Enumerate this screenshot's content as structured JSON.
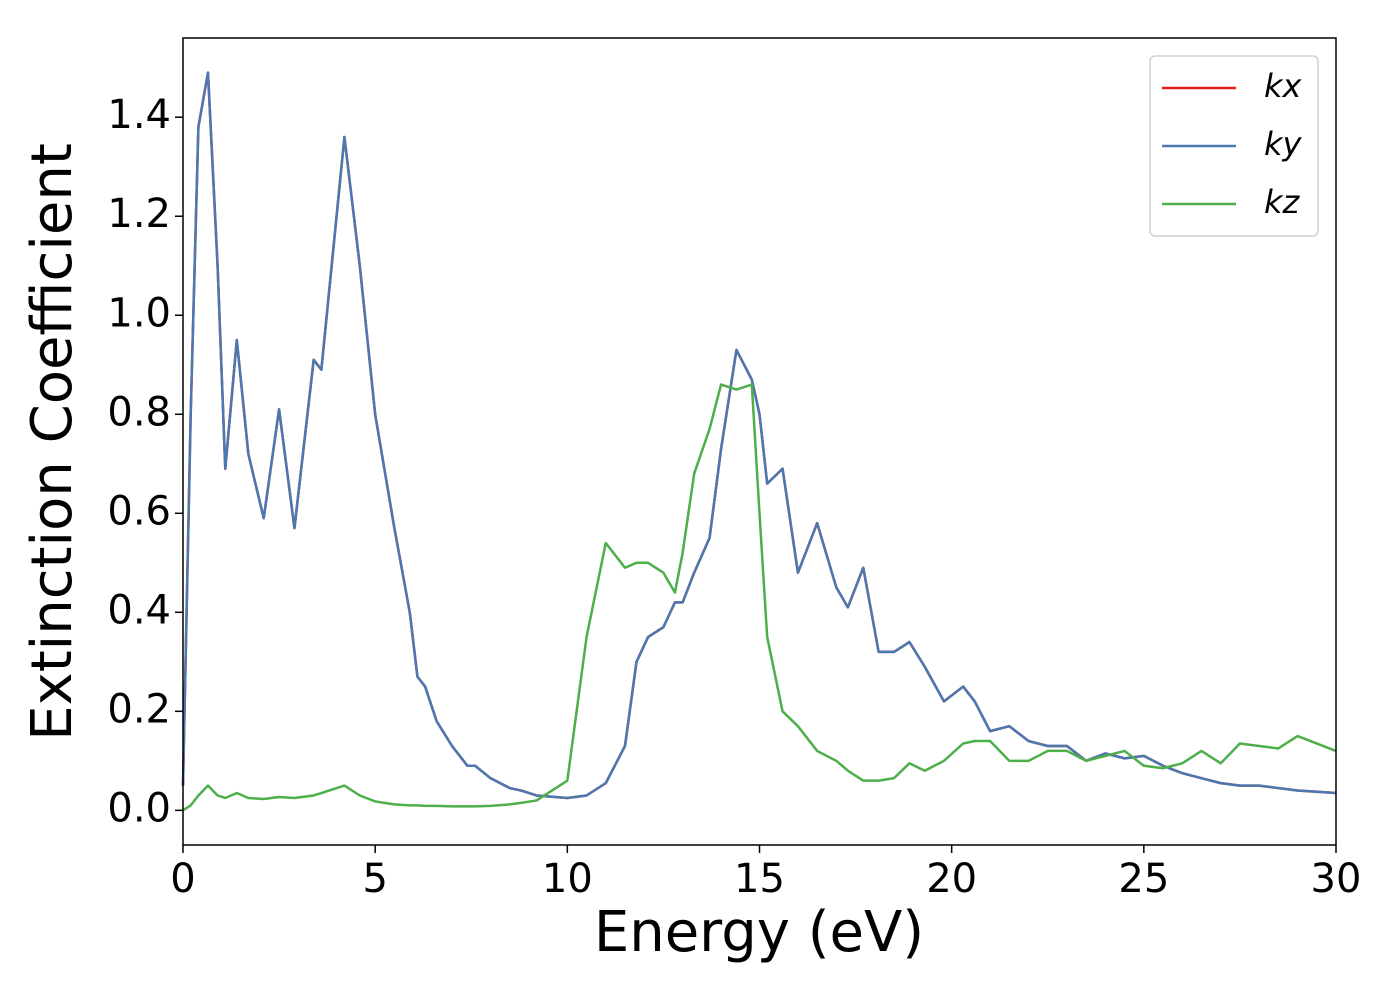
{
  "chart_data": {
    "type": "line",
    "xlabel": "Energy (eV)",
    "ylabel": "Extinction Coefficient",
    "x": [
      0,
      0.2,
      0.4,
      0.65,
      0.9,
      1.1,
      1.4,
      1.7,
      2.1,
      2.5,
      2.9,
      3.4,
      3.6,
      4.2,
      4.6,
      5.0,
      5.5,
      5.9,
      6.1,
      6.3,
      6.6,
      7.0,
      7.4,
      7.6,
      8.0,
      8.5,
      8.8,
      9.2,
      10,
      10.5,
      11,
      11.5,
      11.8,
      12.1,
      12.5,
      12.8,
      13.0,
      13.3,
      13.7,
      14.0,
      14.4,
      14.8,
      15.0,
      15.2,
      15.6,
      16.0,
      16.5,
      17.0,
      17.3,
      17.7,
      18.1,
      18.5,
      18.9,
      19.3,
      19.8,
      20.3,
      20.6,
      21.0,
      21.5,
      22.0,
      22.5,
      23.0,
      23.5,
      24.0,
      24.5,
      25.0,
      25.5,
      26.0,
      26.5,
      27.0,
      27.5,
      28.0,
      28.5,
      29.0,
      30.0
    ],
    "series": [
      {
        "name": "kx",
        "color": "#e41a1c",
        "values": [
          0.05,
          0.8,
          1.38,
          1.49,
          1.1,
          0.69,
          0.95,
          0.72,
          0.59,
          0.81,
          0.57,
          0.91,
          0.89,
          1.36,
          1.1,
          0.8,
          0.57,
          0.4,
          0.27,
          0.25,
          0.18,
          0.13,
          0.09,
          0.09,
          0.065,
          0.045,
          0.04,
          0.03,
          0.025,
          0.03,
          0.055,
          0.13,
          0.3,
          0.35,
          0.37,
          0.42,
          0.42,
          0.48,
          0.55,
          0.73,
          0.93,
          0.87,
          0.8,
          0.66,
          0.69,
          0.48,
          0.58,
          0.45,
          0.41,
          0.49,
          0.32,
          0.32,
          0.34,
          0.29,
          0.22,
          0.25,
          0.22,
          0.16,
          0.17,
          0.14,
          0.13,
          0.13,
          0.1,
          0.115,
          0.105,
          0.11,
          0.09,
          0.075,
          0.065,
          0.055,
          0.05,
          0.05,
          0.045,
          0.04,
          0.035
        ]
      },
      {
        "name": "ky",
        "color": "#4a78b0",
        "values": [
          0.05,
          0.8,
          1.38,
          1.49,
          1.1,
          0.69,
          0.95,
          0.72,
          0.59,
          0.81,
          0.57,
          0.91,
          0.89,
          1.36,
          1.1,
          0.8,
          0.57,
          0.4,
          0.27,
          0.25,
          0.18,
          0.13,
          0.09,
          0.09,
          0.065,
          0.045,
          0.04,
          0.03,
          0.025,
          0.03,
          0.055,
          0.13,
          0.3,
          0.35,
          0.37,
          0.42,
          0.42,
          0.48,
          0.55,
          0.73,
          0.93,
          0.87,
          0.8,
          0.66,
          0.69,
          0.48,
          0.58,
          0.45,
          0.41,
          0.49,
          0.32,
          0.32,
          0.34,
          0.29,
          0.22,
          0.25,
          0.22,
          0.16,
          0.17,
          0.14,
          0.13,
          0.13,
          0.1,
          0.115,
          0.105,
          0.11,
          0.09,
          0.075,
          0.065,
          0.055,
          0.05,
          0.05,
          0.045,
          0.04,
          0.035
        ]
      },
      {
        "name": "kz",
        "color": "#4daf4a",
        "values": [
          0.0,
          0.01,
          0.03,
          0.05,
          0.03,
          0.025,
          0.035,
          0.025,
          0.023,
          0.027,
          0.025,
          0.03,
          0.035,
          0.05,
          0.03,
          0.018,
          0.012,
          0.01,
          0.01,
          0.009,
          0.009,
          0.008,
          0.008,
          0.008,
          0.009,
          0.012,
          0.015,
          0.02,
          0.06,
          0.35,
          0.54,
          0.49,
          0.5,
          0.5,
          0.48,
          0.44,
          0.52,
          0.68,
          0.77,
          0.86,
          0.85,
          0.86,
          0.6,
          0.35,
          0.2,
          0.17,
          0.12,
          0.1,
          0.08,
          0.06,
          0.06,
          0.065,
          0.095,
          0.08,
          0.1,
          0.135,
          0.14,
          0.14,
          0.1,
          0.1,
          0.12,
          0.12,
          0.1,
          0.11,
          0.12,
          0.09,
          0.085,
          0.095,
          0.12,
          0.095,
          0.135,
          0.13,
          0.125,
          0.15,
          0.12
        ]
      }
    ],
    "xlim": [
      0,
      30
    ],
    "xticks": [
      0,
      5,
      10,
      15,
      20,
      25,
      30
    ],
    "ylim": [
      -0.07,
      1.56
    ],
    "yticks": [
      {
        "value": 0,
        "label": "0.0"
      },
      0.2,
      0.4,
      0.6,
      0.8,
      {
        "value": 1,
        "label": "1.0"
      },
      1.2,
      1.4
    ],
    "legend": "upper right",
    "grid": false
  }
}
